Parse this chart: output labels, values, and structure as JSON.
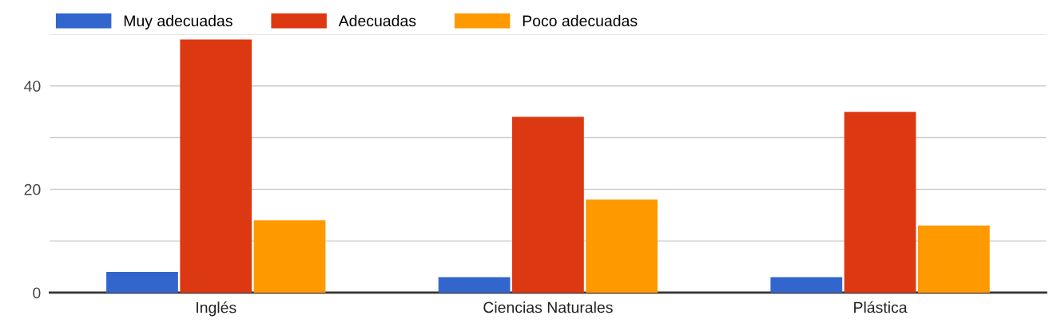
{
  "chart_data": {
    "type": "bar",
    "categories": [
      "Inglés",
      "Ciencias Naturales",
      "Plástica"
    ],
    "series": [
      {
        "name": "Muy adecuadas",
        "color": "#3366cc",
        "values": [
          4,
          3,
          3
        ]
      },
      {
        "name": "Adecuadas",
        "color": "#dc3912",
        "values": [
          49,
          34,
          35
        ]
      },
      {
        "name": "Poco adecuadas",
        "color": "#ff9900",
        "values": [
          14,
          18,
          13
        ]
      }
    ],
    "ylim": [
      0,
      50
    ],
    "yticks": [
      0,
      {
        "value": 10,
        "label": null
      },
      20,
      {
        "value": 30,
        "label": null
      },
      40,
      {
        "value": 50,
        "label": null
      }
    ],
    "grid": "y",
    "legend": "top left"
  }
}
